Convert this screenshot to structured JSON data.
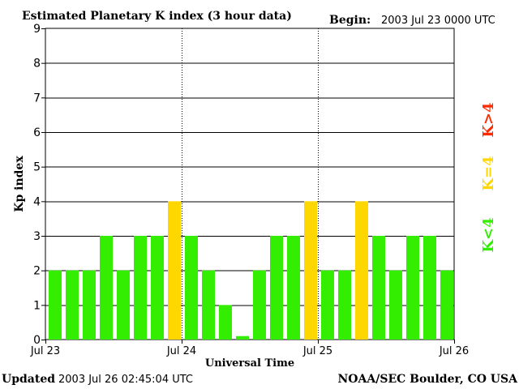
{
  "header": {
    "title": "Estimated Planetary K index (3 hour data)",
    "begin_label": "Begin:",
    "begin_value": "2003 Jul 23 0000 UTC"
  },
  "footer": {
    "updated_label": "Updated",
    "updated_value": "2003 Jul 26 02:45:04 UTC",
    "source": "NOAA/SEC Boulder, CO USA"
  },
  "legend": [
    {
      "label": "K<4",
      "color": "#33ee00"
    },
    {
      "label": "K=4",
      "color": "#ffd700"
    },
    {
      "label": "K>4",
      "color": "#ff2a00"
    }
  ],
  "chart_data": {
    "type": "bar",
    "title": "Estimated Planetary K index (3 hour data)",
    "xlabel": "Universal Time",
    "ylabel": "Kp index",
    "ylim": [
      0,
      9
    ],
    "yticks": [
      0,
      1,
      2,
      3,
      4,
      5,
      6,
      7,
      8,
      9
    ],
    "xticks": [
      "Jul 23",
      "Jul 24",
      "Jul 25",
      "Jul 26"
    ],
    "bins_per_day": 8,
    "values": [
      2,
      2,
      2,
      3,
      2,
      3,
      3,
      4,
      3,
      2,
      1,
      0.1,
      2,
      3,
      3,
      4,
      2,
      2,
      4,
      3,
      2,
      3,
      3,
      2
    ],
    "colors": {
      "below": "#33ee00",
      "equal": "#ffd700",
      "above": "#ff2a00"
    }
  }
}
